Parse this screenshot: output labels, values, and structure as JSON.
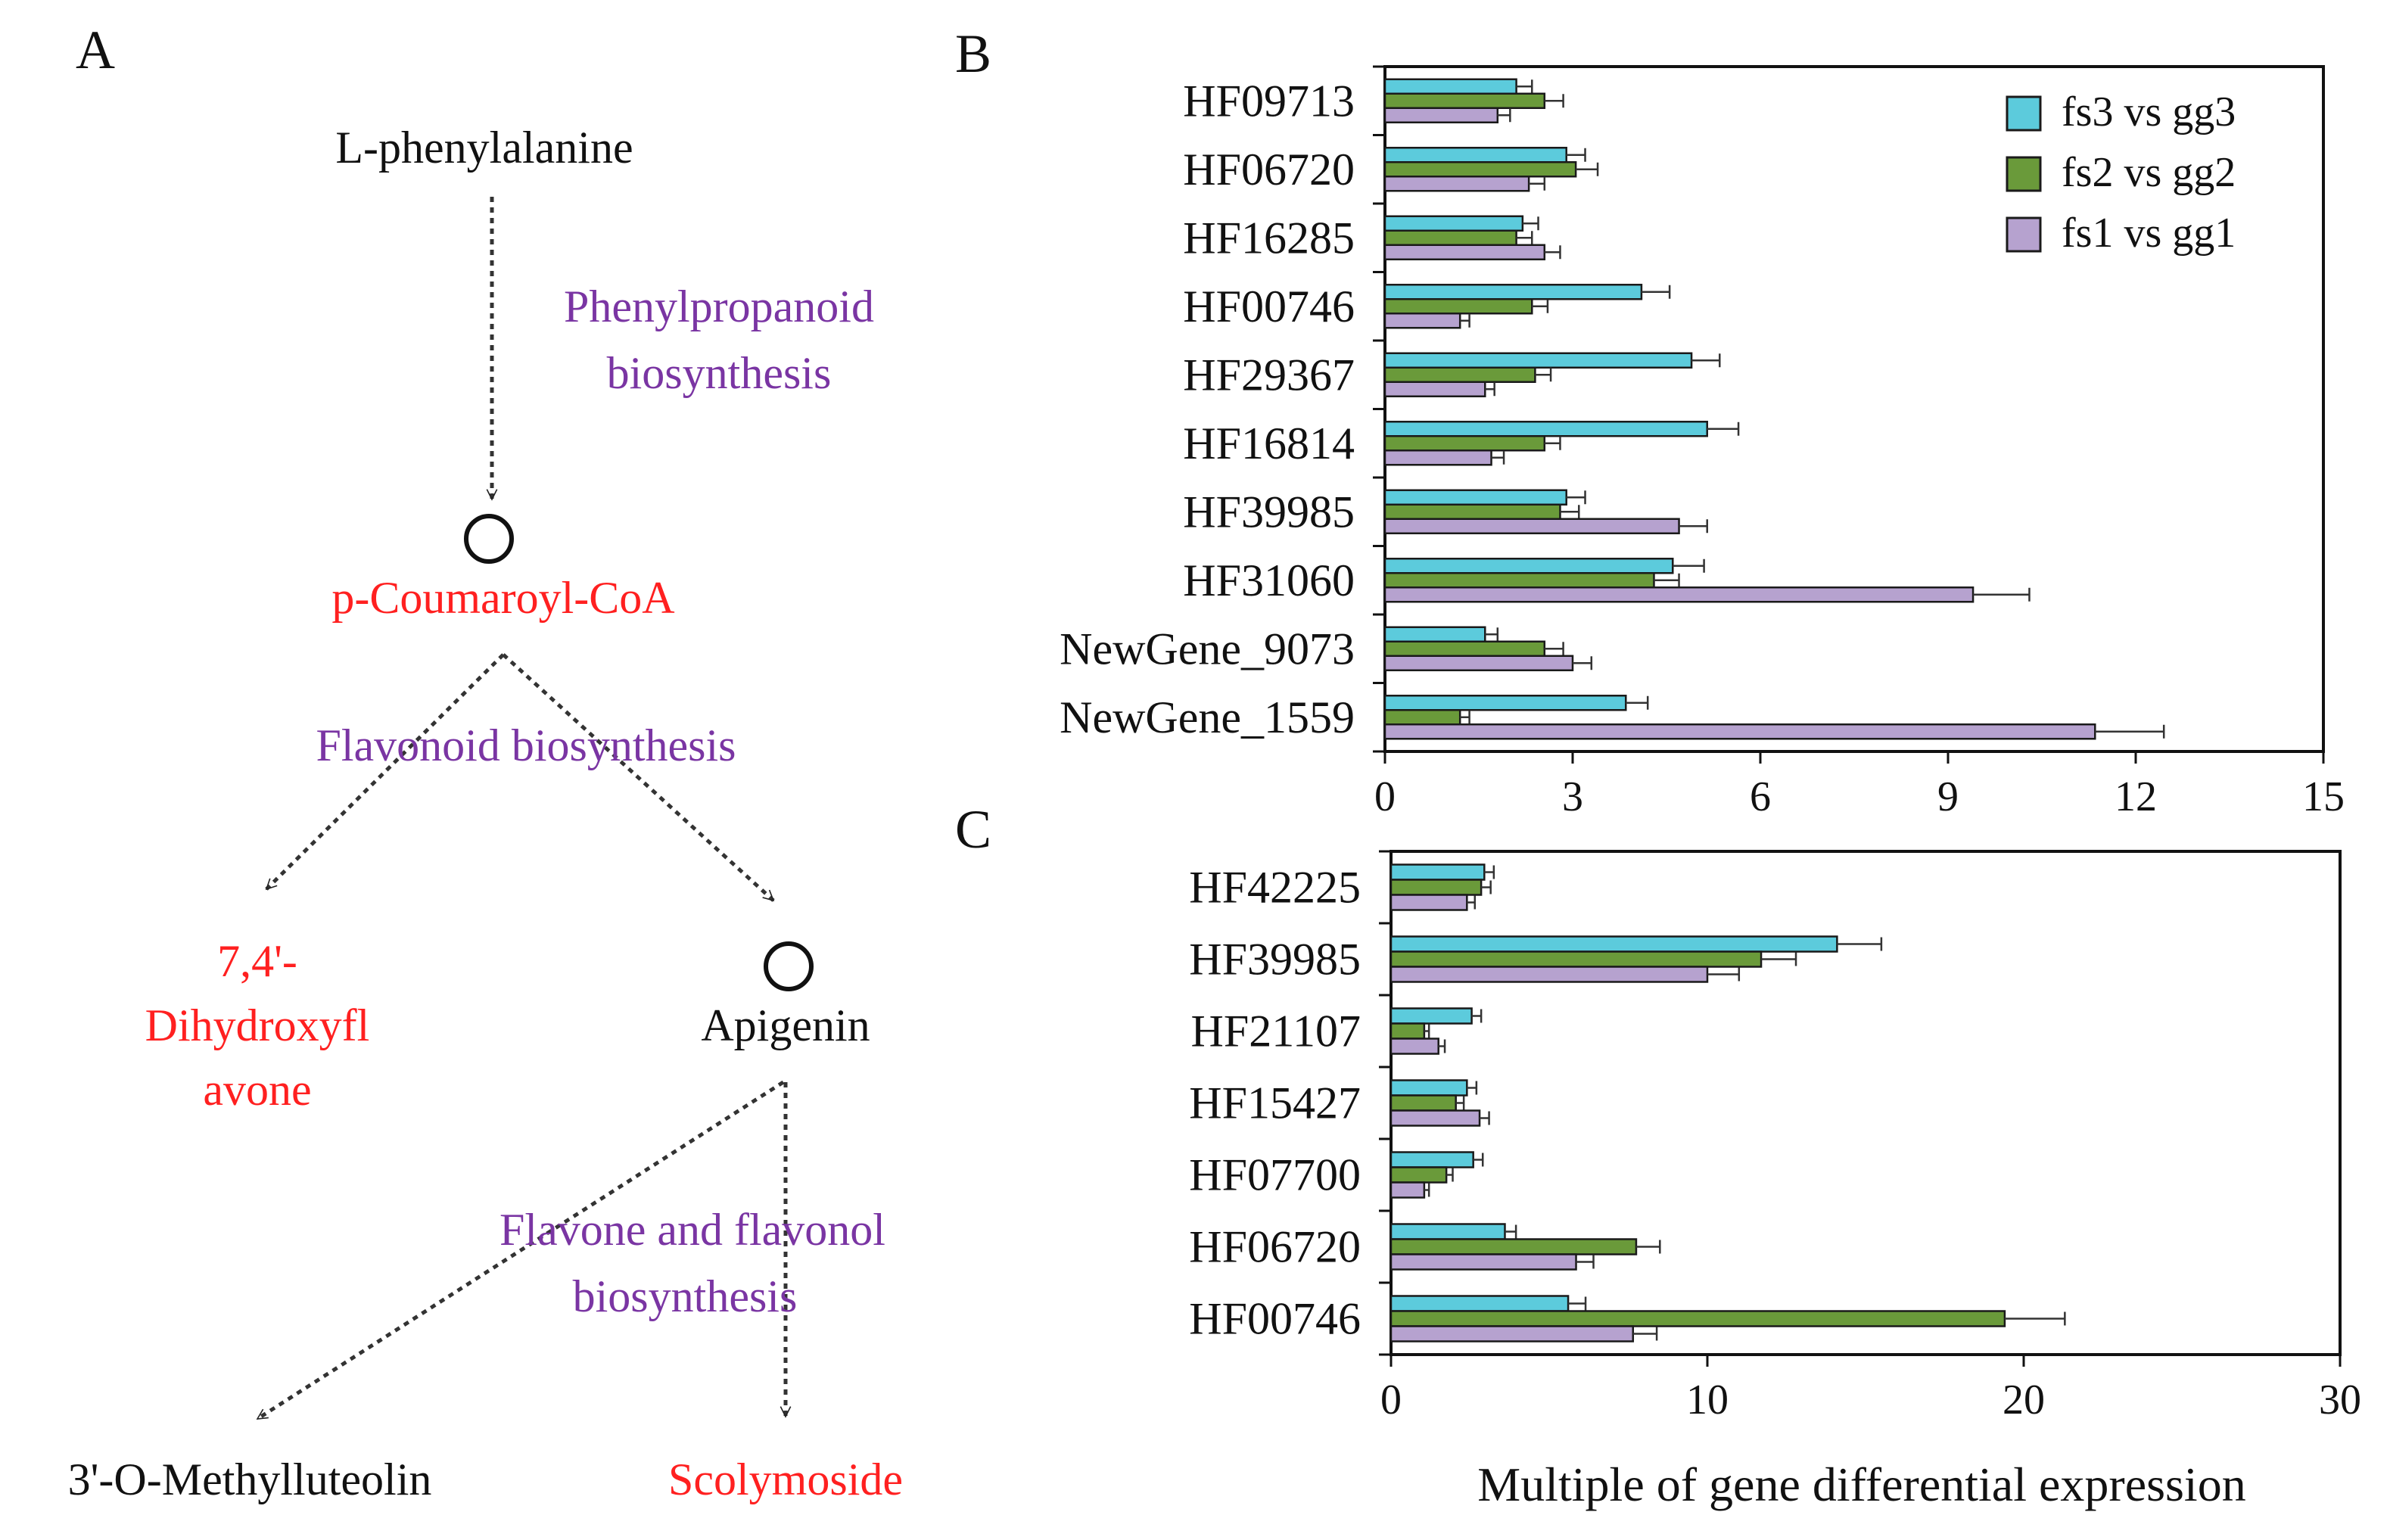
{
  "colors": {
    "fs3_vs_gg3": "#5ccbdc",
    "fs2_vs_gg2": "#6a9a3a",
    "fs1_vs_gg1": "#b6a2cf",
    "compound_red": "#ff2020",
    "pathway_purple": "#7a35a3",
    "ink": "#111111"
  },
  "panel_a": {
    "letter": "A",
    "compounds": {
      "l_phenylalanine": "L-phenylalanine",
      "p_coumaroyl_coa": "p-Coumaroyl-CoA",
      "dihydroxyflavone_line1": "7,4'-",
      "dihydroxyflavone_line2": "Dihydroxyfl",
      "dihydroxyflavone_line3": "avone",
      "apigenin": "Apigenin",
      "methylluteolin": "3'-O-Methylluteolin",
      "scolymoside": "Scolymoside"
    },
    "pathways": {
      "phenylpropanoid_line1": "Phenylpropanoid",
      "phenylpropanoid_line2": "biosynthesis",
      "flavonoid": "Flavonoid biosynthesis",
      "flavone_line1": "Flavone and flavonol",
      "flavone_line2": "biosynthesis"
    }
  },
  "chart_data": [
    {
      "panel": "B",
      "type": "bar",
      "orientation": "horizontal",
      "title": "",
      "xlabel": "",
      "ylabel": "",
      "xlim": [
        0,
        15
      ],
      "xticks": [
        "0",
        "3",
        "6",
        "9",
        "12",
        "15"
      ],
      "categories": [
        "HF09713",
        "HF06720",
        "HF16285",
        "HF00746",
        "HF29367",
        "HF16814",
        "HF39985",
        "HF31060",
        "NewGene_9073",
        "NewGene_1559"
      ],
      "legend": {
        "position": "top-right",
        "entries": [
          "fs3 vs gg3",
          "fs2 vs gg2",
          "fs1 vs gg1"
        ]
      },
      "series": [
        {
          "name": "fs3 vs gg3",
          "values": [
            2.1,
            2.9,
            2.2,
            4.1,
            4.9,
            5.15,
            2.9,
            4.6,
            1.6,
            3.85
          ],
          "errors": [
            0.25,
            0.3,
            0.25,
            0.45,
            0.45,
            0.5,
            0.3,
            0.5,
            0.2,
            0.35
          ]
        },
        {
          "name": "fs2 vs gg2",
          "values": [
            2.55,
            3.05,
            2.1,
            2.35,
            2.4,
            2.55,
            2.8,
            4.3,
            2.55,
            1.2
          ],
          "errors": [
            0.3,
            0.35,
            0.25,
            0.25,
            0.25,
            0.25,
            0.3,
            0.4,
            0.3,
            0.15
          ]
        },
        {
          "name": "fs1 vs gg1",
          "values": [
            1.8,
            2.3,
            2.55,
            1.2,
            1.6,
            1.7,
            4.7,
            9.4,
            3.0,
            11.35
          ],
          "errors": [
            0.2,
            0.25,
            0.25,
            0.15,
            0.15,
            0.2,
            0.45,
            0.9,
            0.3,
            1.1
          ]
        }
      ]
    },
    {
      "panel": "C",
      "type": "bar",
      "orientation": "horizontal",
      "title": "",
      "xlabel": "Multiple of gene differential expression",
      "ylabel": "",
      "xlim": [
        0,
        30
      ],
      "xticks": [
        "0",
        "10",
        "20",
        "30"
      ],
      "categories": [
        "HF42225",
        "HF39985",
        "HF21107",
        "HF15427",
        "HF07700",
        "HF06720",
        "HF00746"
      ],
      "series": [
        {
          "name": "fs3 vs gg3",
          "values": [
            2.95,
            14.1,
            2.55,
            2.4,
            2.6,
            3.6,
            5.6
          ],
          "errors": [
            0.3,
            1.4,
            0.3,
            0.3,
            0.3,
            0.35,
            0.55
          ]
        },
        {
          "name": "fs2 vs gg2",
          "values": [
            2.85,
            11.7,
            1.05,
            2.05,
            1.75,
            7.75,
            19.4
          ],
          "errors": [
            0.3,
            1.1,
            0.15,
            0.25,
            0.2,
            0.75,
            1.9
          ]
        },
        {
          "name": "fs1 vs gg1",
          "values": [
            2.4,
            10.0,
            1.5,
            2.8,
            1.05,
            5.85,
            7.65
          ],
          "errors": [
            0.25,
            1.0,
            0.2,
            0.3,
            0.15,
            0.55,
            0.75
          ]
        }
      ]
    }
  ]
}
